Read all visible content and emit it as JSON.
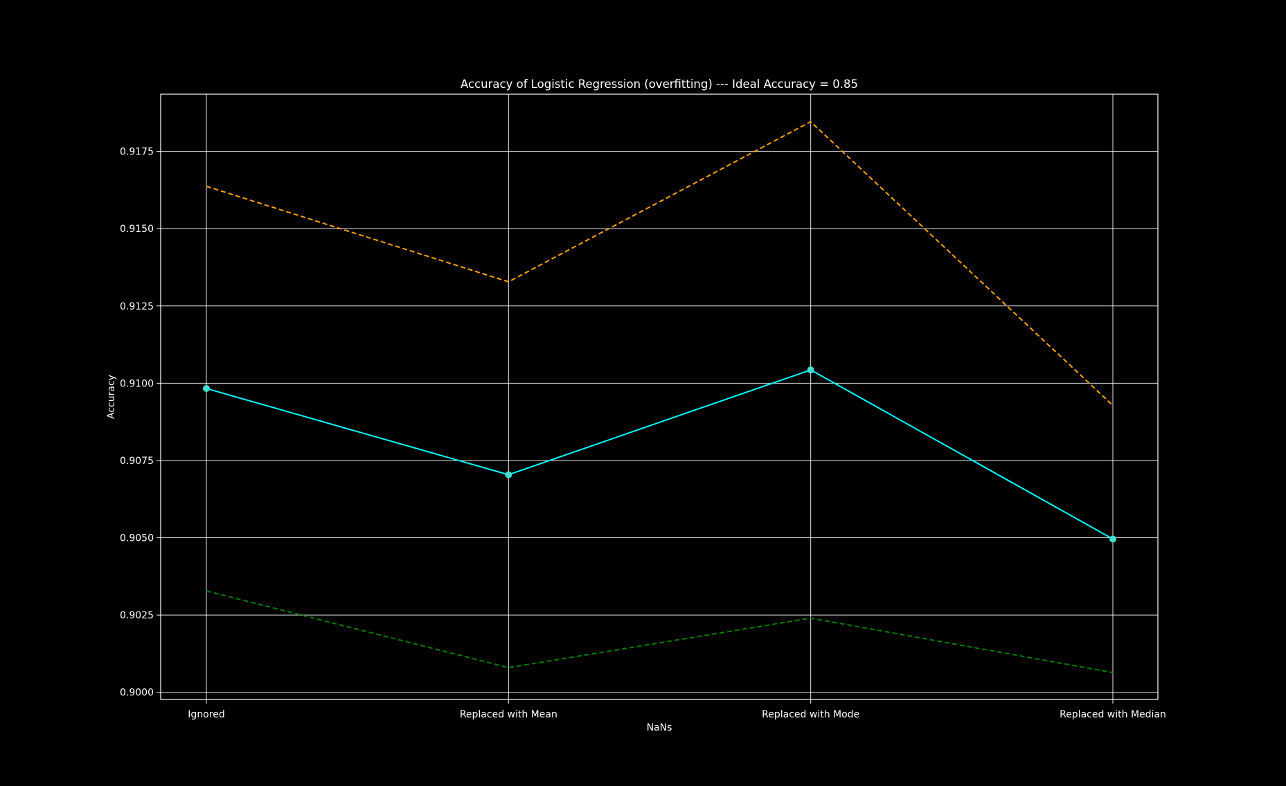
{
  "chart_data": {
    "type": "line",
    "title": "Accuracy of Logistic Regression (overfitting) --- Ideal Accuracy = 0.85",
    "xlabel": "NaNs",
    "ylabel": "Accuracy",
    "categories": [
      "Ignored",
      "Replaced with Mean",
      "Replaced with Mode",
      "Replaced with Median"
    ],
    "ylim": [
      0.89977,
      0.91935
    ],
    "yticks": [
      "0.9000",
      "0.9025",
      "0.9050",
      "0.9075",
      "0.9100",
      "0.9125",
      "0.9150",
      "0.9175"
    ],
    "grid": true,
    "background": "#000000",
    "series": [
      {
        "values": [
          0.90983,
          0.90704,
          0.91043,
          0.90496
        ],
        "color": "#00ffff",
        "style": "solid",
        "markers": true
      },
      {
        "values": [
          0.91637,
          0.91328,
          0.91846,
          0.90928
        ],
        "color": "#ffa500",
        "style": "dashed",
        "markers": false
      },
      {
        "values": [
          0.90328,
          0.9008,
          0.9024,
          0.90064
        ],
        "color": "#008000",
        "style": "dashed",
        "markers": false
      }
    ]
  }
}
